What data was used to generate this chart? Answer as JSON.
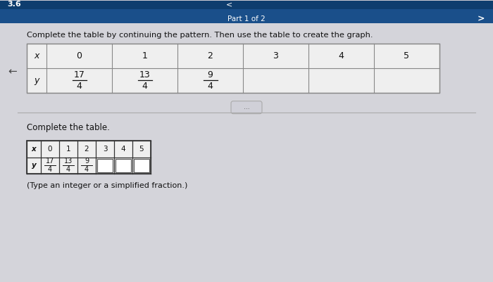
{
  "bg_color": "#c9c9d1",
  "header_bar_color": "#1a4f8a",
  "header_bar_text": "Part 1 of 2",
  "header_left_text": "3.6",
  "instruction_text": "Complete the table by continuing the pattern. Then use the table to create the graph.",
  "table1": {
    "x_values": [
      "0",
      "1",
      "2",
      "3",
      "4",
      "5"
    ],
    "y_numerators": [
      "17",
      "13",
      "9",
      "",
      "",
      ""
    ],
    "y_denominators": [
      "4",
      "4",
      "4",
      "",
      "",
      ""
    ]
  },
  "divider_dots": "...",
  "section2_label": "Complete the table.",
  "table2": {
    "x_values": [
      "0",
      "1",
      "2",
      "3",
      "4",
      "5"
    ],
    "y_numerators": [
      "17",
      "13",
      "9",
      "",
      "",
      ""
    ],
    "y_denominators": [
      "4",
      "4",
      "4",
      "",
      "",
      ""
    ]
  },
  "footnote": "(Type an integer or a simplified fraction.)",
  "content_bg": "#d4d4da",
  "table_bg": "#efefef",
  "empty_cell_bg": "#c8c8d0",
  "table_line_color": "#888888",
  "table2_line_color": "#333333"
}
